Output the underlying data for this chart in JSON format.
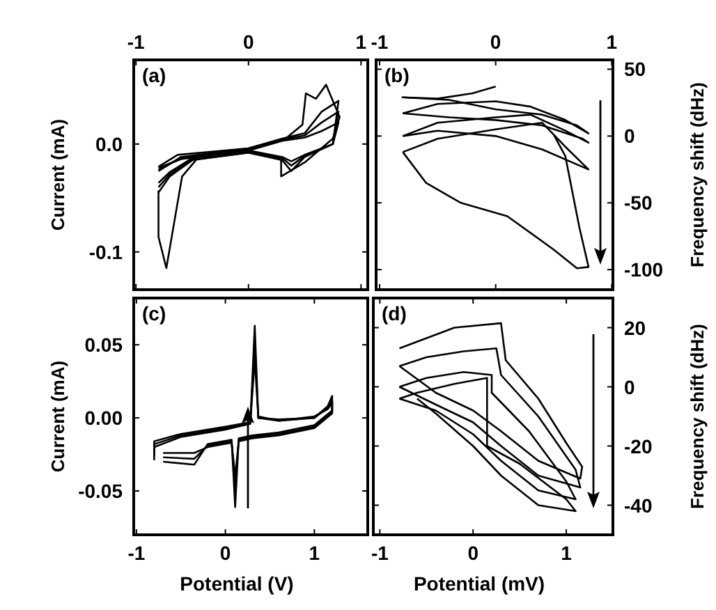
{
  "chart_data": [
    {
      "type": "line",
      "xlim": [
        -1.02,
        1.06
      ],
      "xticks": [
        -1,
        0,
        1
      ],
      "ylim": [
        -0.135,
        0.078
      ],
      "yticks": [
        {
          "value": 0,
          "label": "0.0"
        },
        -0.1
      ],
      "ylabel": "Current (mA)",
      "annotations": [
        "(a)"
      ],
      "marker": "none",
      "line_style": "solid",
      "series": [
        {
          "color": "#000000",
          "x": [
            -0.8,
            -0.8,
            -0.73,
            -0.59,
            -0.46,
            0,
            0.29,
            0.29,
            0.5,
            0.75,
            0.81,
            0.69,
            0.6,
            0.51,
            0.48,
            0.33,
            0,
            -0.63,
            -0.8
          ],
          "values": [
            -0.043,
            -0.086,
            -0.115,
            -0.03,
            -0.014,
            -0.008,
            -0.014,
            -0.03,
            -0.017,
            0.005,
            0.025,
            0.055,
            0.042,
            0.047,
            0.018,
            0.005,
            -0.004,
            -0.01,
            -0.021
          ]
        },
        {
          "color": "#000000",
          "x": [
            -0.8,
            -0.7,
            -0.5,
            0,
            0.3,
            0.38,
            0.5,
            0.75,
            0.8,
            0.65,
            0.5,
            0.3,
            0,
            -0.6,
            -0.8
          ],
          "values": [
            -0.045,
            -0.03,
            -0.015,
            -0.008,
            -0.015,
            -0.025,
            -0.012,
            0,
            0.04,
            0.03,
            0.01,
            0.005,
            -0.004,
            -0.012,
            -0.025
          ]
        },
        {
          "color": "#000000",
          "x": [
            -0.8,
            -0.7,
            -0.5,
            0,
            0.3,
            0.38,
            0.5,
            0.75,
            0.8,
            0.65,
            0.5,
            0.3,
            0,
            -0.6,
            -0.8
          ],
          "values": [
            -0.04,
            -0.028,
            -0.014,
            -0.007,
            -0.013,
            -0.02,
            -0.011,
            0,
            0.03,
            0.02,
            0.008,
            0.004,
            -0.005,
            -0.013,
            -0.024
          ]
        },
        {
          "color": "#000000",
          "x": [
            -0.8,
            -0.7,
            -0.5,
            0,
            0.3,
            0.38,
            0.5,
            0.75,
            0.8,
            0.65,
            0.5,
            0.3,
            0,
            -0.6,
            -0.8
          ],
          "values": [
            -0.036,
            -0.026,
            -0.013,
            -0.006,
            -0.012,
            -0.016,
            -0.01,
            0,
            0.02,
            0.012,
            0.006,
            0.003,
            -0.006,
            -0.014,
            -0.022
          ]
        }
      ]
    },
    {
      "type": "line",
      "xlim": [
        -1.03,
        1.01
      ],
      "xticks": [
        -1,
        0,
        1
      ],
      "y2lim": [
        -115,
        57
      ],
      "y2ticks": [
        50,
        0,
        -50,
        -100
      ],
      "y2label": "Frequency shift (dHz)",
      "annotations": [
        "(b)"
      ],
      "marker": "none",
      "line_style": "solid",
      "series": [
        {
          "color": "#000000",
          "axis": "y2",
          "x": [
            -0.8,
            -0.4,
            0,
            0.4,
            0.7,
            0.8,
            0.6,
            0.3,
            0,
            -0.5,
            -0.8
          ],
          "values": [
            29,
            27,
            20,
            16,
            8,
            2,
            12,
            22,
            26,
            24,
            17
          ]
        },
        {
          "color": "#000000",
          "axis": "y2",
          "x": [
            -0.8,
            -0.4,
            0,
            0.4,
            0.75,
            0.8,
            0.6,
            0.3,
            0,
            -0.5,
            -0.8
          ],
          "values": [
            17,
            14,
            12,
            8,
            -2,
            -5,
            4,
            16,
            14,
            10,
            0
          ]
        },
        {
          "color": "#000000",
          "axis": "y2",
          "x": [
            -0.8,
            -0.5,
            0,
            0.4,
            0.8,
            0.6,
            0.4,
            0,
            -0.5,
            -0.8
          ],
          "values": [
            0,
            4,
            0,
            -10,
            -25,
            -8,
            10,
            5,
            -2,
            -12
          ]
        },
        {
          "color": "#000000",
          "axis": "y2",
          "x": [
            -0.8,
            -0.6,
            -0.3,
            0.1,
            0.5,
            0.7,
            0.8,
            0.72,
            0.6,
            0.5
          ],
          "values": [
            -12,
            -35,
            -50,
            -60,
            -85,
            -99,
            -98,
            -68,
            -15,
            1
          ]
        },
        {
          "color": "#000000",
          "axis": "y2",
          "x": [
            -0.81,
            -0.5,
            -0.2,
            0
          ],
          "values": [
            29,
            28,
            32,
            37
          ]
        }
      ]
    },
    {
      "type": "line",
      "xlim": [
        -1.03,
        1.6
      ],
      "xticks": [
        -1,
        0,
        1
      ],
      "ylim": [
        -0.08,
        0.082
      ],
      "yticks": [
        0.05,
        {
          "value": 0,
          "label": "0.00"
        },
        -0.05
      ],
      "ylabel": "Current (mA)",
      "xlabel": "Potential (V)",
      "annotations": [
        "(c)"
      ],
      "marker": "none",
      "line_style": "solid",
      "series": [
        {
          "color": "#000000",
          "x": [
            -0.8,
            -0.8,
            -0.5,
            0,
            0.28,
            0.33,
            0.37,
            0.6,
            1,
            1.15,
            1.2,
            1.2,
            1,
            0.6,
            0.3,
            0.15,
            0.11,
            0.07,
            -0.2,
            -0.35,
            -0.7
          ],
          "values": [
            -0.029,
            -0.02,
            -0.013,
            -0.008,
            -0.004,
            0.063,
            0,
            -0.001,
            0,
            0.008,
            0.015,
            0.005,
            -0.005,
            -0.01,
            -0.012,
            -0.014,
            -0.061,
            -0.015,
            -0.018,
            -0.032,
            -0.03
          ]
        },
        {
          "color": "#000000",
          "x": [
            -0.8,
            -0.8,
            -0.5,
            0,
            0.28,
            0.33,
            0.37,
            0.6,
            1,
            1.15,
            1.2,
            1.2,
            1,
            0.6,
            0.3,
            0.15,
            0.11,
            0.07,
            -0.2,
            -0.35,
            -0.7
          ],
          "values": [
            -0.026,
            -0.018,
            -0.012,
            -0.007,
            -0.004,
            0.05,
            0,
            -0.002,
            0,
            0.007,
            0.012,
            0.004,
            -0.006,
            -0.011,
            -0.013,
            -0.015,
            -0.05,
            -0.016,
            -0.019,
            -0.028,
            -0.027
          ]
        },
        {
          "color": "#000000",
          "x": [
            -0.8,
            -0.8,
            -0.5,
            0,
            0.28,
            0.33,
            0.37,
            0.6,
            1,
            1.15,
            1.2,
            1.2,
            1,
            0.6,
            0.3,
            0.15,
            0.11,
            0.07,
            -0.2,
            -0.35,
            -0.7
          ],
          "values": [
            -0.023,
            -0.016,
            -0.011,
            -0.006,
            -0.003,
            0.04,
            0.001,
            -0.002,
            0.001,
            0.006,
            0.01,
            0.003,
            -0.007,
            -0.012,
            -0.014,
            -0.016,
            -0.04,
            -0.017,
            -0.02,
            -0.024,
            -0.024
          ]
        }
      ]
    },
    {
      "type": "line",
      "xlim": [
        -1.07,
        1.5
      ],
      "xticks": [
        -1,
        0,
        1
      ],
      "y2lim": [
        -50,
        30
      ],
      "y2ticks": [
        20,
        0,
        -20,
        -40
      ],
      "y2label": "Frequency shift (dHz)",
      "xlabel": "Potential (mV)",
      "annotations": [
        "(d)"
      ],
      "marker": "none",
      "line_style": "solid",
      "series": [
        {
          "color": "#000000",
          "axis": "y2",
          "x": [
            -0.79,
            -0.2,
            0.3,
            0.35,
            0.7,
            1,
            1.17,
            1.15,
            0.7,
            0.3,
            0,
            -0.4,
            -0.79
          ],
          "values": [
            13,
            20,
            21.5,
            9,
            -4,
            -19,
            -27,
            -31,
            -25,
            -15,
            -8,
            -2,
            7
          ]
        },
        {
          "color": "#000000",
          "axis": "y2",
          "x": [
            -0.79,
            -0.5,
            -0.1,
            0.25,
            0.3,
            0.7,
            1.1,
            1.15,
            0.7,
            0.3,
            0,
            -0.4,
            -0.79
          ],
          "values": [
            7,
            10,
            12,
            13,
            4,
            -10,
            -28,
            -34,
            -30,
            -20,
            -12,
            -6,
            0
          ]
        },
        {
          "color": "#000000",
          "axis": "y2",
          "x": [
            -0.79,
            -0.5,
            -0.1,
            0.2,
            0.2,
            0.6,
            1,
            1.1,
            0.7,
            0.3,
            0,
            -0.4,
            -0.79
          ],
          "values": [
            0,
            3,
            5,
            4,
            -2,
            -15,
            -32,
            -38,
            -35,
            -25,
            -16,
            -8,
            -4
          ]
        },
        {
          "color": "#000000",
          "axis": "y2",
          "x": [
            -0.79,
            -0.6,
            -0.2,
            0.15,
            0.15,
            0.5,
            1,
            1.1,
            0.7,
            0.3,
            0,
            -0.4,
            -0.6
          ],
          "values": [
            -4,
            -2,
            1,
            3,
            -20,
            -26,
            -38,
            -42,
            -40,
            -30,
            -20,
            -9,
            -4
          ]
        }
      ]
    }
  ]
}
